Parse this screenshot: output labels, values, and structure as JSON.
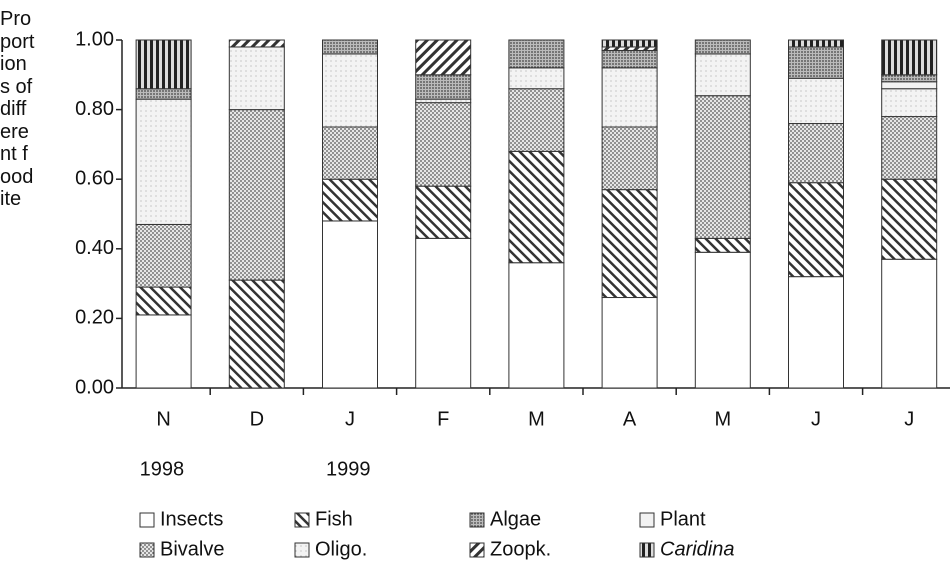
{
  "chart_data": {
    "type": "stacked_bar",
    "y_label": "Proportions of different food ite",
    "categories": [
      "N",
      "D",
      "J",
      "F",
      "M",
      "A",
      "M",
      "J",
      "J"
    ],
    "annotations": [
      {
        "text": "1998",
        "category": 0
      },
      {
        "text": "1999",
        "category": 2
      }
    ],
    "ylim": [
      0,
      1
    ],
    "yticks": [
      {
        "value": 0,
        "label": "0.00"
      },
      {
        "value": 0.2,
        "label": "0.20"
      },
      {
        "value": 0.4,
        "label": "0.40"
      },
      {
        "value": 0.6,
        "label": "0.60"
      },
      {
        "value": 0.8,
        "label": "0.80"
      },
      {
        "value": 1,
        "label": "1.00"
      }
    ],
    "legend_order": [
      0,
      1,
      5,
      4,
      2,
      3,
      6,
      7
    ],
    "series": [
      {
        "name": "Insects",
        "color": "#ffffff",
        "pattern": "none",
        "values": [
          0.21,
          0,
          0.48,
          0.43,
          0.36,
          0.26,
          0.39,
          0.32,
          0.37
        ]
      },
      {
        "name": "Fish",
        "color": "#444444",
        "pattern": "back-diagonal",
        "values": [
          0.08,
          0.31,
          0.12,
          0.15,
          0.32,
          0.31,
          0.04,
          0.27,
          0.23
        ]
      },
      {
        "name": "Bivalve",
        "color": "#bbbbbb",
        "pattern": "dots",
        "values": [
          0.18,
          0.49,
          0.15,
          0.24,
          0.18,
          0.18,
          0.41,
          0.17,
          0.18
        ]
      },
      {
        "name": "Oligo.",
        "color": "#e4e4e4",
        "pattern": "light-dots",
        "values": [
          0.36,
          0.18,
          0.21,
          0.01,
          0.06,
          0.17,
          0.12,
          0.13,
          0.08
        ]
      },
      {
        "name": "Plant",
        "color": "#f2f2f2",
        "pattern": "none",
        "values": [
          0,
          0,
          0,
          0,
          0,
          0,
          0,
          0,
          0.02
        ]
      },
      {
        "name": "Algae",
        "color": "#999999",
        "pattern": "dense-dots",
        "values": [
          0.03,
          0,
          0.04,
          0.07,
          0.08,
          0.05,
          0.04,
          0.09,
          0.02
        ]
      },
      {
        "name": "Zoopk.",
        "color": "#555555",
        "pattern": "diagonal",
        "values": [
          0,
          0.02,
          0,
          0.1,
          0,
          0.01,
          0,
          0,
          0
        ]
      },
      {
        "name": "Caridina",
        "color": "#333333",
        "pattern": "vertical",
        "italic": true,
        "values": [
          0.14,
          0,
          0,
          0,
          0,
          0.02,
          0,
          0.02,
          0.1
        ]
      }
    ]
  }
}
